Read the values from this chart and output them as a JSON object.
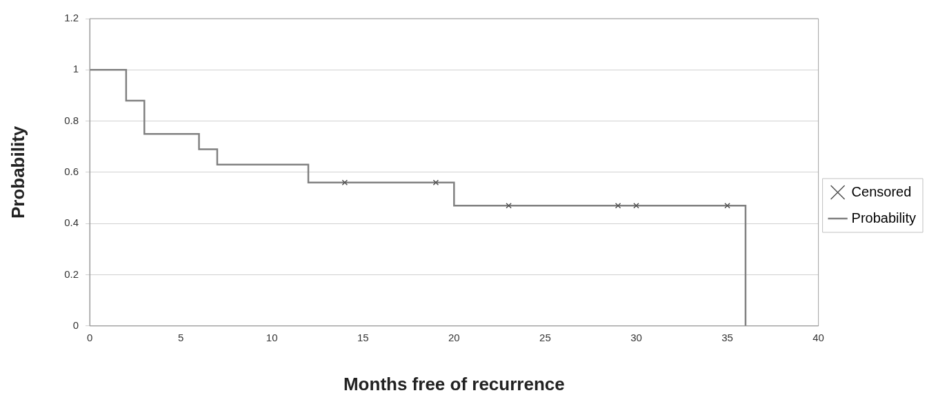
{
  "chart_data": {
    "type": "step",
    "xlabel": "Months free of recurrence",
    "ylabel": "Probability",
    "xlim": [
      0,
      40
    ],
    "xticks": [
      0,
      5,
      10,
      15,
      20,
      25,
      30,
      35,
      40
    ],
    "ylim": [
      0,
      1.2
    ],
    "yticks": [
      0,
      0.2,
      0.4,
      0.6,
      0.8,
      1,
      1.2
    ],
    "grid": "y",
    "legend": "right",
    "series": [
      {
        "name": "Censored",
        "type": "scatter",
        "marker": "cross",
        "color": "#505050",
        "x": [
          14,
          19,
          23,
          29,
          30,
          35
        ],
        "values": [
          0.56,
          0.56,
          0.47,
          0.47,
          0.47,
          0.47
        ]
      },
      {
        "name": "Probability",
        "type": "step",
        "color": "#808080",
        "x": [
          0,
          2,
          3,
          6,
          7,
          12,
          20,
          36
        ],
        "values": [
          1,
          0.88,
          0.75,
          0.69,
          0.63,
          0.56,
          0.47,
          0
        ]
      }
    ]
  }
}
